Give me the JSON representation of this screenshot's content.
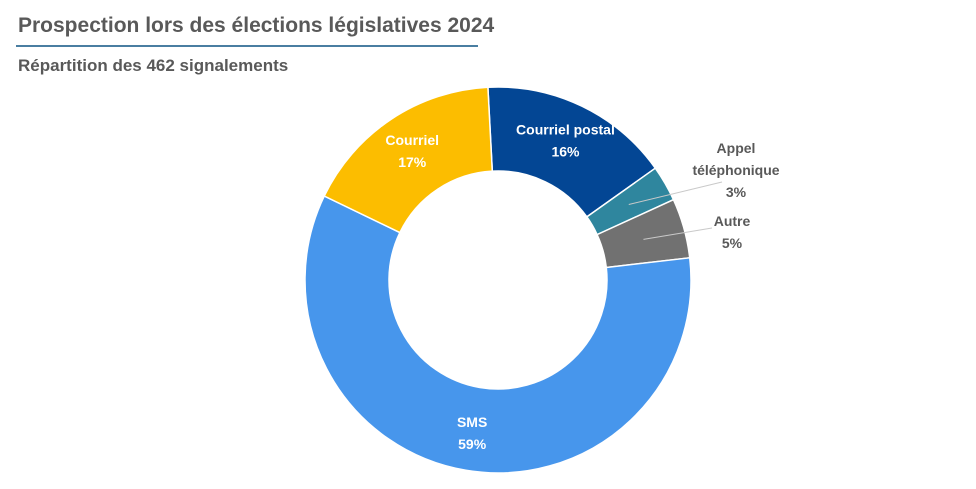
{
  "header": {
    "title": "Prospection lors des élections législatives 2024",
    "subtitle": "Répartition des 462 signalements"
  },
  "chart_data": {
    "type": "pie",
    "donut": true,
    "slices": [
      {
        "label": "Courriel postal",
        "lines": [
          "Courriel postal"
        ],
        "value": 16,
        "pct_label": "16%",
        "color": "#034694",
        "label_color": "#ffffff",
        "label_position": "inside"
      },
      {
        "label": "Appel téléphonique",
        "lines": [
          "Appel",
          "téléphonique"
        ],
        "value": 3,
        "pct_label": "3%",
        "color": "#2f869e",
        "label_color": "#595959",
        "label_position": "outside"
      },
      {
        "label": "Autre",
        "lines": [
          "Autre"
        ],
        "value": 5,
        "pct_label": "5%",
        "color": "#717171",
        "label_color": "#595959",
        "label_position": "outside"
      },
      {
        "label": "SMS",
        "lines": [
          "SMS"
        ],
        "value": 59,
        "pct_label": "59%",
        "color": "#4796ec",
        "label_color": "#ffffff",
        "label_position": "inside"
      },
      {
        "label": "Courriel",
        "lines": [
          "Courriel"
        ],
        "value": 17,
        "pct_label": "17%",
        "color": "#fcbd00",
        "label_color": "#ffffff",
        "label_position": "inside"
      }
    ]
  }
}
